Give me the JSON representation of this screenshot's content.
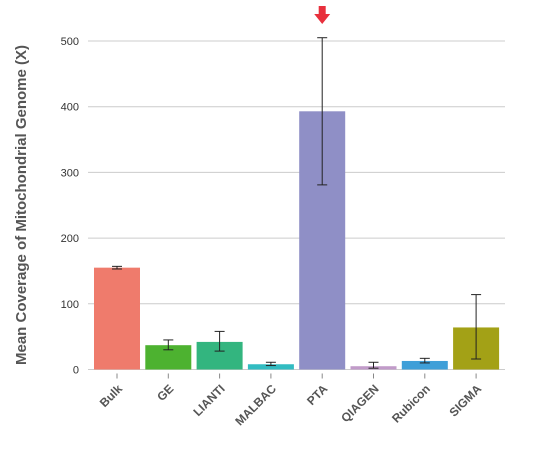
{
  "chart_data": {
    "type": "bar",
    "title": "",
    "xlabel": "",
    "ylabel": "Mean Coverage of Mitochondrial Genome (X)",
    "ylim": [
      0,
      525
    ],
    "yticks": [
      0,
      100,
      200,
      300,
      400,
      500
    ],
    "grid": "horizontal",
    "categories": [
      "Bulk",
      "GE",
      "LIANTI",
      "MALBAC",
      "PTA",
      "QIAGEN",
      "Rubicon",
      "SIGMA"
    ],
    "values": [
      155,
      37,
      42,
      8,
      393,
      5,
      13,
      64
    ],
    "error_low": [
      153,
      30,
      28,
      6,
      281,
      2,
      10,
      16
    ],
    "error_high": [
      157,
      45,
      58,
      11,
      505,
      11,
      17,
      114
    ],
    "colors": [
      "#ef7b6c",
      "#4db230",
      "#33b57f",
      "#32bcc1",
      "#8f8fc6",
      "#c19bc9",
      "#3f9fd8",
      "#a3a116"
    ],
    "highlight_marker": {
      "category": "PTA",
      "color": "#e8303c",
      "icon": "arrow-down-icon"
    }
  }
}
